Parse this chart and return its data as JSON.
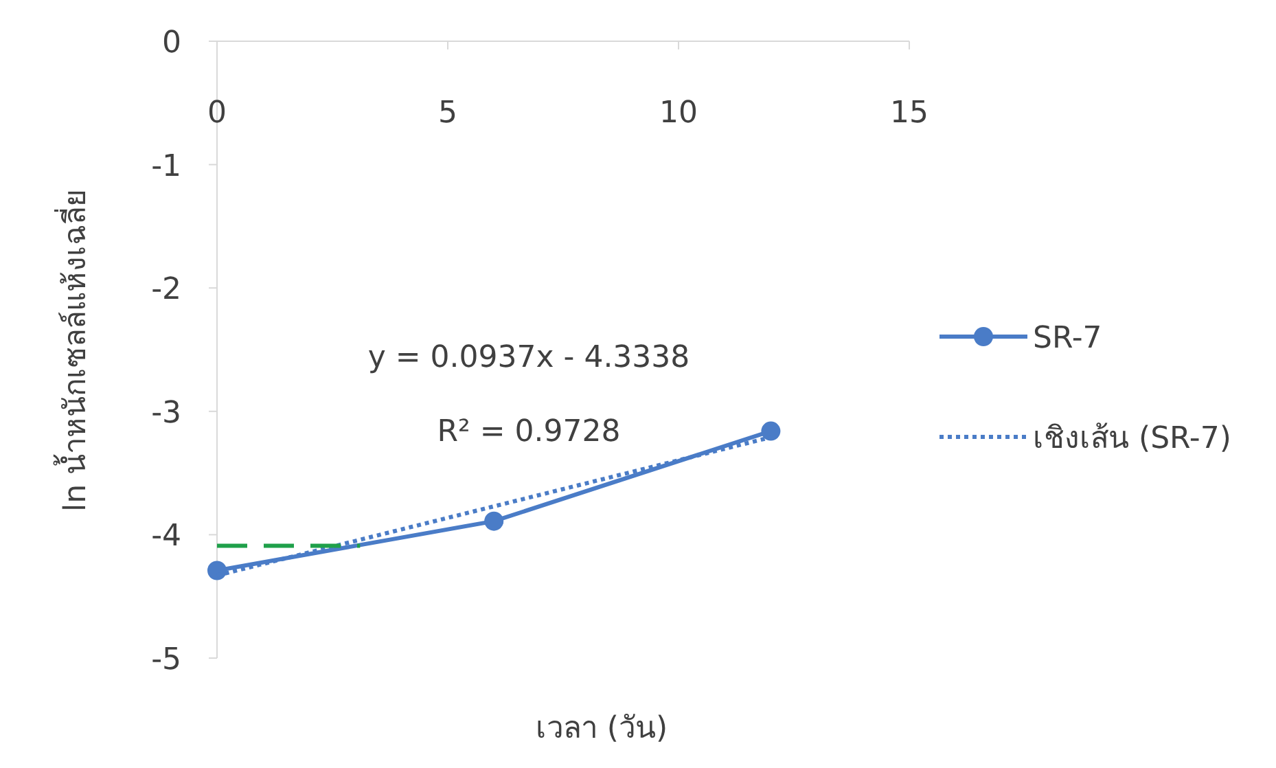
{
  "chart_data": {
    "type": "line",
    "xlabel": "เวลา (วัน)",
    "ylabel": "ln น้ำหนักเซลล์แห้งเฉลี่ย",
    "xlim": [
      0,
      15
    ],
    "xticks": [
      0,
      5,
      10,
      15
    ],
    "ylim": [
      -5,
      0
    ],
    "yticks": [
      0,
      -1,
      -2,
      -3,
      -4,
      -5
    ],
    "grid": false,
    "legend": "right",
    "annotations": [
      "y = 0.0937x - 4.3338",
      "R² = 0.9728"
    ],
    "series": [
      {
        "name": "SR-7",
        "color": "#4a7cc7",
        "x": [
          0,
          6,
          12
        ],
        "values": [
          -4.29,
          -3.89,
          -3.16
        ],
        "marker": "circle",
        "line_style": "solid"
      },
      {
        "name": "เชิงเส้น (SR-7)",
        "color": "#4a7cc7",
        "x": [
          0,
          12
        ],
        "values": [
          -4.33,
          -3.21
        ],
        "marker": "none",
        "line_style": "dotted"
      },
      {
        "color": "#1fa04a",
        "x": [
          0,
          3.1
        ],
        "values": [
          -4.09,
          -4.09
        ],
        "marker": "none",
        "line_style": "dashed"
      }
    ]
  }
}
